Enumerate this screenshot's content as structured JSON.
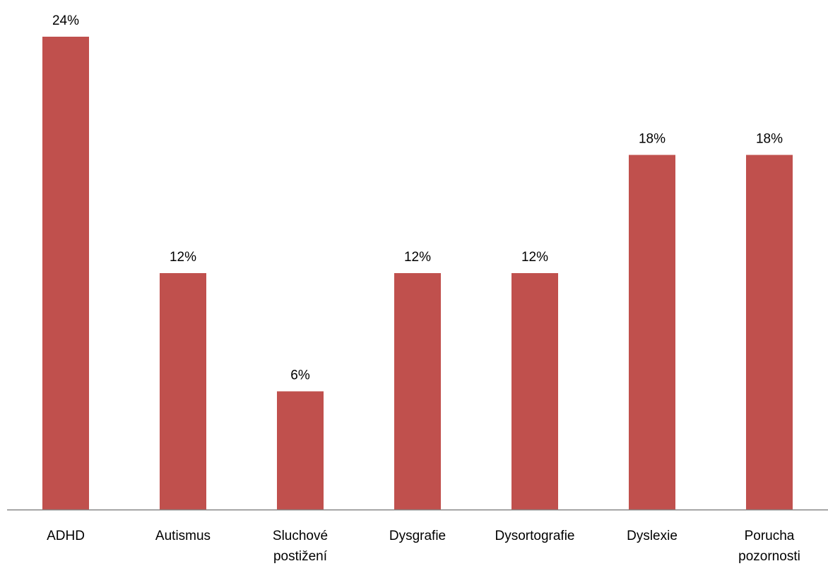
{
  "chart_data": {
    "type": "bar",
    "title": "",
    "xlabel": "",
    "ylabel": "",
    "categories": [
      [
        "ADHD"
      ],
      [
        "Autismus"
      ],
      [
        "Sluchové",
        "postižení"
      ],
      [
        "Dysgrafie"
      ],
      [
        "Dysortografie"
      ],
      [
        "Dyslexie"
      ],
      [
        "Porucha",
        "pozornosti"
      ]
    ],
    "values": [
      24,
      12,
      6,
      12,
      12,
      18,
      18
    ],
    "value_labels": [
      "24%",
      "12%",
      "6%",
      "12%",
      "12%",
      "18%",
      "18%"
    ],
    "unit": "%",
    "ylim": [
      0,
      24
    ],
    "grid": false,
    "legend": "none",
    "colors": {
      "bar": "#c0504d",
      "axis": "#868686",
      "text": "#000000"
    }
  }
}
